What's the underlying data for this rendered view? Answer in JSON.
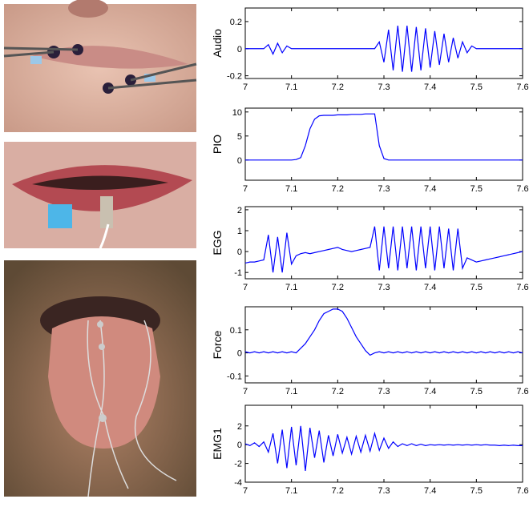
{
  "chart_data": [
    {
      "type": "line",
      "ylabel": "Audio",
      "xlim": [
        7,
        7.6
      ],
      "xticks": [
        7,
        7.1,
        7.2,
        7.3,
        7.4,
        7.5,
        7.6
      ],
      "ylim": [
        -0.22,
        0.3
      ],
      "yticks": [
        -0.2,
        0,
        0.2
      ],
      "x": [
        7,
        7.01,
        7.02,
        7.03,
        7.04,
        7.05,
        7.06,
        7.07,
        7.08,
        7.09,
        7.1,
        7.11,
        7.12,
        7.13,
        7.14,
        7.15,
        7.16,
        7.17,
        7.18,
        7.19,
        7.2,
        7.21,
        7.22,
        7.23,
        7.24,
        7.25,
        7.26,
        7.27,
        7.28,
        7.29,
        7.3,
        7.31,
        7.32,
        7.33,
        7.34,
        7.35,
        7.36,
        7.37,
        7.38,
        7.39,
        7.4,
        7.41,
        7.42,
        7.43,
        7.44,
        7.45,
        7.46,
        7.47,
        7.48,
        7.49,
        7.5,
        7.51,
        7.52,
        7.53,
        7.54,
        7.55,
        7.56,
        7.57,
        7.58,
        7.59,
        7.6
      ],
      "series": [
        {
          "color": "#0000ff",
          "values": [
            0,
            0,
            0,
            0,
            0,
            0.03,
            -0.04,
            0.04,
            -0.03,
            0.02,
            0,
            0,
            0,
            0,
            0,
            0,
            0,
            0,
            0,
            0,
            0,
            0,
            0,
            0,
            0,
            0,
            0,
            0,
            0,
            0.05,
            -0.1,
            0.14,
            -0.16,
            0.17,
            -0.17,
            0.17,
            -0.17,
            0.16,
            -0.16,
            0.15,
            -0.14,
            0.13,
            -0.12,
            0.11,
            -0.1,
            0.08,
            -0.07,
            0.05,
            -0.03,
            0.02,
            0,
            0,
            0,
            0,
            0,
            0,
            0,
            0,
            0,
            0,
            0
          ]
        }
      ]
    },
    {
      "type": "line",
      "ylabel": "PIO",
      "xlim": [
        7,
        7.6
      ],
      "xticks": [
        7,
        7.1,
        7.2,
        7.3,
        7.4,
        7.5,
        7.6
      ],
      "ylim": [
        -4.2,
        10.8
      ],
      "yticks": [
        0,
        5,
        10
      ],
      "x": [
        7,
        7.01,
        7.02,
        7.03,
        7.04,
        7.05,
        7.06,
        7.07,
        7.08,
        7.09,
        7.1,
        7.11,
        7.12,
        7.13,
        7.14,
        7.15,
        7.16,
        7.17,
        7.18,
        7.19,
        7.2,
        7.21,
        7.22,
        7.23,
        7.24,
        7.25,
        7.26,
        7.27,
        7.28,
        7.29,
        7.3,
        7.31,
        7.32,
        7.33,
        7.34,
        7.35,
        7.36,
        7.37,
        7.38,
        7.39,
        7.4,
        7.41,
        7.42,
        7.43,
        7.44,
        7.45,
        7.46,
        7.47,
        7.48,
        7.49,
        7.5,
        7.51,
        7.52,
        7.53,
        7.54,
        7.55,
        7.56,
        7.57,
        7.58,
        7.59,
        7.6
      ],
      "series": [
        {
          "color": "#0000ff",
          "values": [
            0,
            0,
            0,
            0,
            0,
            0,
            0,
            0,
            0,
            0,
            0,
            0.1,
            0.5,
            3,
            6.5,
            8.5,
            9.2,
            9.3,
            9.3,
            9.3,
            9.4,
            9.4,
            9.4,
            9.5,
            9.5,
            9.5,
            9.6,
            9.6,
            9.6,
            3,
            0.3,
            0,
            0,
            0,
            0,
            0,
            0,
            0,
            0,
            0,
            0,
            0,
            0,
            0,
            0,
            0,
            0,
            0,
            0,
            0,
            0,
            0,
            0,
            0,
            0,
            0,
            0,
            0,
            0,
            0,
            0
          ]
        }
      ]
    },
    {
      "type": "line",
      "ylabel": "EGG",
      "xlim": [
        7,
        7.6
      ],
      "xticks": [
        7,
        7.1,
        7.2,
        7.3,
        7.4,
        7.5,
        7.6
      ],
      "ylim": [
        -1.3,
        2.15
      ],
      "yticks": [
        -1,
        0,
        1,
        2
      ],
      "x": [
        7,
        7.01,
        7.02,
        7.03,
        7.04,
        7.05,
        7.06,
        7.07,
        7.08,
        7.09,
        7.1,
        7.11,
        7.12,
        7.13,
        7.14,
        7.15,
        7.16,
        7.17,
        7.18,
        7.19,
        7.2,
        7.21,
        7.22,
        7.23,
        7.24,
        7.25,
        7.26,
        7.27,
        7.28,
        7.29,
        7.3,
        7.31,
        7.32,
        7.33,
        7.34,
        7.35,
        7.36,
        7.37,
        7.38,
        7.39,
        7.4,
        7.41,
        7.42,
        7.43,
        7.44,
        7.45,
        7.46,
        7.47,
        7.48,
        7.49,
        7.5,
        7.51,
        7.52,
        7.53,
        7.54,
        7.55,
        7.56,
        7.57,
        7.58,
        7.59,
        7.6
      ],
      "series": [
        {
          "color": "#0000ff",
          "values": [
            -0.55,
            -0.5,
            -0.5,
            -0.45,
            -0.4,
            0.8,
            -1,
            0.7,
            -1,
            0.9,
            -0.6,
            -0.2,
            -0.1,
            -0.05,
            -0.1,
            -0.05,
            0,
            0.05,
            0.1,
            0.15,
            0.2,
            0.1,
            0.05,
            0,
            0.05,
            0.1,
            0.15,
            0.2,
            1.2,
            -0.9,
            1.2,
            -0.8,
            1.2,
            -0.9,
            1.2,
            -0.8,
            1.2,
            -0.9,
            1.2,
            -0.8,
            1.2,
            -0.9,
            1.2,
            -0.8,
            1.1,
            -0.9,
            1.1,
            -0.8,
            -0.3,
            -0.4,
            -0.5,
            -0.45,
            -0.4,
            -0.35,
            -0.3,
            -0.25,
            -0.2,
            -0.15,
            -0.1,
            -0.05,
            0
          ]
        }
      ]
    },
    {
      "type": "line",
      "ylabel": "Force",
      "xlim": [
        7,
        7.6
      ],
      "xticks": [
        7,
        7.1,
        7.2,
        7.3,
        7.4,
        7.5,
        7.6
      ],
      "ylim": [
        -0.13,
        0.2
      ],
      "yticks": [
        -0.1,
        0,
        0.1
      ],
      "x": [
        7,
        7.01,
        7.02,
        7.03,
        7.04,
        7.05,
        7.06,
        7.07,
        7.08,
        7.09,
        7.1,
        7.11,
        7.12,
        7.13,
        7.14,
        7.15,
        7.16,
        7.17,
        7.18,
        7.19,
        7.2,
        7.21,
        7.22,
        7.23,
        7.24,
        7.25,
        7.26,
        7.27,
        7.28,
        7.29,
        7.3,
        7.31,
        7.32,
        7.33,
        7.34,
        7.35,
        7.36,
        7.37,
        7.38,
        7.39,
        7.4,
        7.41,
        7.42,
        7.43,
        7.44,
        7.45,
        7.46,
        7.47,
        7.48,
        7.49,
        7.5,
        7.51,
        7.52,
        7.53,
        7.54,
        7.55,
        7.56,
        7.57,
        7.58,
        7.59,
        7.6
      ],
      "series": [
        {
          "color": "#0000ff",
          "values": [
            0.005,
            0,
            0.005,
            0,
            0.005,
            0,
            0.005,
            0,
            0.005,
            0,
            0.005,
            0,
            0.02,
            0.04,
            0.07,
            0.1,
            0.14,
            0.17,
            0.18,
            0.19,
            0.19,
            0.18,
            0.15,
            0.11,
            0.07,
            0.04,
            0.01,
            -0.01,
            0,
            0.005,
            0,
            0.005,
            0,
            0.005,
            0,
            0.005,
            0,
            0.005,
            0,
            0.005,
            0,
            0.005,
            0,
            0.005,
            0,
            0.005,
            0,
            0.005,
            0,
            0.005,
            0,
            0.005,
            0,
            0.005,
            0,
            0.005,
            0,
            0.005,
            0,
            0.005,
            0
          ]
        }
      ]
    },
    {
      "type": "line",
      "ylabel": "EMG1",
      "xlim": [
        7,
        7.6
      ],
      "xticks": [
        7,
        7.1,
        7.2,
        7.3,
        7.4,
        7.5,
        7.6
      ],
      "ylim": [
        -4,
        4.2
      ],
      "yticks": [
        -4,
        -2,
        0,
        2
      ],
      "x": [
        7,
        7.01,
        7.02,
        7.03,
        7.04,
        7.05,
        7.06,
        7.07,
        7.08,
        7.09,
        7.1,
        7.11,
        7.12,
        7.13,
        7.14,
        7.15,
        7.16,
        7.17,
        7.18,
        7.19,
        7.2,
        7.21,
        7.22,
        7.23,
        7.24,
        7.25,
        7.26,
        7.27,
        7.28,
        7.29,
        7.3,
        7.31,
        7.32,
        7.33,
        7.34,
        7.35,
        7.36,
        7.37,
        7.38,
        7.39,
        7.4,
        7.41,
        7.42,
        7.43,
        7.44,
        7.45,
        7.46,
        7.47,
        7.48,
        7.49,
        7.5,
        7.51,
        7.52,
        7.53,
        7.54,
        7.55,
        7.56,
        7.57,
        7.58,
        7.59,
        7.6
      ],
      "series": [
        {
          "color": "#0000ff",
          "values": [
            0.1,
            -0.1,
            0.2,
            -0.2,
            0.3,
            -0.8,
            1.2,
            -2,
            1.6,
            -2.5,
            1.9,
            -2.2,
            2,
            -2.8,
            1.8,
            -1.4,
            1.5,
            -1.9,
            1,
            -1.2,
            1.1,
            -0.9,
            0.8,
            -1,
            0.9,
            -0.8,
            1,
            -0.7,
            1.2,
            -0.6,
            0.7,
            -0.4,
            0.3,
            -0.2,
            0.1,
            -0.1,
            0.1,
            -0.1,
            0.05,
            -0.1,
            0,
            -0.05,
            0,
            -0.05,
            0,
            -0.05,
            0,
            -0.05,
            0,
            -0.05,
            0,
            -0.05,
            0,
            -0.05,
            -0.05,
            -0.1,
            -0.05,
            -0.1,
            -0.05,
            -0.1,
            -0.1
          ]
        }
      ]
    }
  ]
}
